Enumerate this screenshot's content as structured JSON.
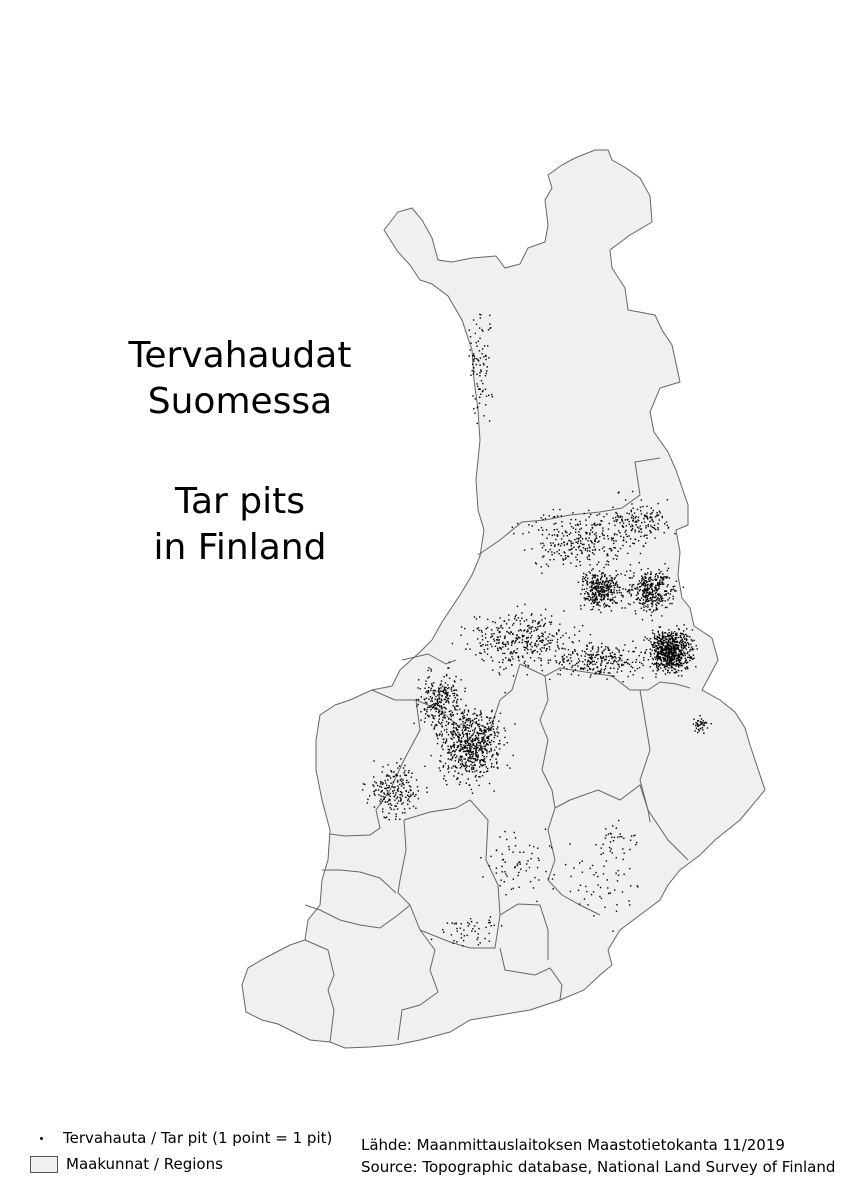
{
  "title": {
    "fi_line1": "Tervahaudat",
    "fi_line2": "Suomessa",
    "en_line1": "Tar pits",
    "en_line2": "in Finland"
  },
  "legend": {
    "pit_label": "Tervahauta / Tar pit (1 point = 1 pit)",
    "region_label": "Maakunnat / Regions"
  },
  "source": {
    "line1": "Lähde: Maanmittauslaitoksen Maastotietokanta 11/2019",
    "line2": "Source: Topographic database, National Land Survey of Finland"
  },
  "colors": {
    "region_fill": "#f0f0f0",
    "region_border": "#666666",
    "pit_points": "#000000"
  }
}
